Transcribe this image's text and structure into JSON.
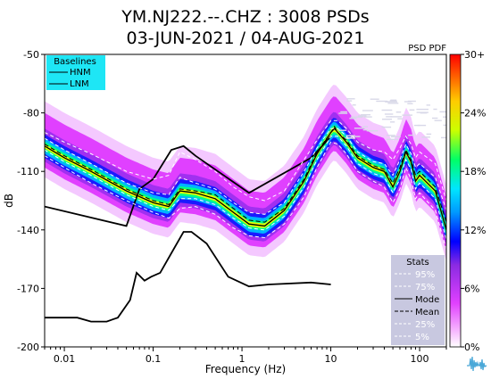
{
  "header": {
    "title_line1": "YM.NJ222.--.CHZ : 3008 PSDs",
    "title_line2": "03-JUN-2021 / 04-AUG-2021",
    "pdf_label": "PSD PDF"
  },
  "colors": {
    "baseline_box": "#1ee6f5",
    "stats_box": "#c8c8e0",
    "pdf_outer": "#e040ff",
    "pdf_inner": "#ffffff",
    "mode_line": "#000000"
  },
  "icons": {
    "logo": "seismogram-logo-icon"
  },
  "chart_data": {
    "type": "heatmap",
    "title": "YM.NJ222.--.CHZ : 3008 PSDs",
    "subtitle": "03-JUN-2021 / 04-AUG-2021",
    "xlabel": "Frequency (Hz)",
    "ylabel": "dB",
    "x_scale": "log",
    "xlim": [
      0.006,
      200
    ],
    "ylim": [
      -200,
      -50
    ],
    "x_ticks": [
      {
        "value": 0.01,
        "label": "0.01"
      },
      {
        "value": 0.1,
        "label": "0.1"
      },
      {
        "value": 1,
        "label": "1"
      },
      {
        "value": 10,
        "label": "10"
      },
      {
        "value": 100,
        "label": "100"
      }
    ],
    "y_ticks": [
      {
        "value": -50,
        "label": "-50"
      },
      {
        "value": -80,
        "label": "-80"
      },
      {
        "value": -110,
        "label": "-110"
      },
      {
        "value": -140,
        "label": "-140"
      },
      {
        "value": -170,
        "label": "-170"
      },
      {
        "value": -200,
        "label": "-200"
      }
    ],
    "colorbar": {
      "label": "PSD PDF",
      "ticks": [
        "0%",
        "6%",
        "12%",
        "18%",
        "24%",
        "30+"
      ],
      "range": [
        0,
        30
      ],
      "colors": [
        "#ffffff",
        "#e040ff",
        "#8a2be2",
        "#0000ff",
        "#00ccff",
        "#00ff66",
        "#ccff00",
        "#ffcc00",
        "#ff6600",
        "#ff0000"
      ]
    },
    "baselines": {
      "title": "Baselines",
      "entries": [
        "HNM",
        "LNM"
      ],
      "HNM": {
        "freq": [
          0.006,
          0.05,
          0.07,
          0.1,
          0.16,
          0.22,
          0.3,
          1.2,
          6,
          8,
          10
        ],
        "db": [
          -128,
          -138,
          -119,
          -114,
          -99,
          -97,
          -102,
          -121,
          -103,
          -97,
          -92
        ]
      },
      "LNM": {
        "freq": [
          0.006,
          0.014,
          0.02,
          0.03,
          0.04,
          0.055,
          0.065,
          0.08,
          0.095,
          0.12,
          0.16,
          0.22,
          0.27,
          0.4,
          0.7,
          1.2,
          2,
          6,
          10
        ],
        "db": [
          -185,
          -185,
          -187,
          -187,
          -185,
          -176,
          -162,
          -166,
          -164,
          -162,
          -152,
          -141,
          -141,
          -147,
          -164,
          -169,
          -168,
          -167,
          -168
        ]
      }
    },
    "stats": {
      "title": "Stats",
      "entries": [
        "95%",
        "75%",
        "Mode",
        "Mean",
        "25%",
        "5%"
      ]
    },
    "series": [
      {
        "name": "Mode",
        "freq": [
          0.006,
          0.01,
          0.02,
          0.05,
          0.1,
          0.15,
          0.2,
          0.3,
          0.5,
          0.8,
          1.2,
          1.8,
          3,
          5,
          7,
          10,
          11,
          12,
          15,
          20,
          30,
          40,
          50,
          60,
          70,
          80,
          90,
          100,
          150,
          200
        ],
        "db": [
          -97,
          -103,
          -110,
          -120,
          -126,
          -128,
          -120,
          -121,
          -124,
          -131,
          -137,
          -138,
          -130,
          -115,
          -101,
          -90,
          -88,
          -90,
          -95,
          -103,
          -108,
          -110,
          -118,
          -110,
          -100,
          -105,
          -115,
          -112,
          -120,
          -140
        ]
      },
      {
        "name": "Mean",
        "freq": [
          0.006,
          0.01,
          0.02,
          0.05,
          0.1,
          0.15,
          0.2,
          0.3,
          0.5,
          0.8,
          1.2,
          1.8,
          3,
          5,
          7,
          10,
          11,
          12,
          15,
          20,
          30,
          40,
          50,
          60,
          70,
          80,
          90,
          100,
          150,
          200
        ],
        "db": [
          -96,
          -102,
          -109,
          -119,
          -125,
          -127,
          -119,
          -120,
          -122,
          -129,
          -135,
          -136,
          -129,
          -114,
          -100,
          -90,
          -87,
          -90,
          -94,
          -102,
          -107,
          -109,
          -116,
          -108,
          -99,
          -104,
          -112,
          -110,
          -118,
          -136
        ]
      },
      {
        "name": "95%",
        "freq": [
          0.006,
          0.01,
          0.02,
          0.05,
          0.1,
          0.15,
          0.2,
          0.3,
          0.5,
          0.8,
          1.2,
          1.8,
          3,
          5,
          7,
          10,
          12,
          15,
          20,
          30,
          40,
          50,
          60,
          70,
          80,
          90,
          100,
          150,
          200
        ],
        "db": [
          -90,
          -95,
          -101,
          -110,
          -114,
          -112,
          -100,
          -104,
          -110,
          -118,
          -123,
          -125,
          -120,
          -104,
          -94,
          -84,
          -84,
          -88,
          -95,
          -99,
          -100,
          -104,
          -98,
          -92,
          -96,
          -103,
          -100,
          -106,
          -125
        ]
      },
      {
        "name": "75%",
        "freq": [
          0.006,
          0.01,
          0.02,
          0.05,
          0.1,
          0.15,
          0.2,
          0.3,
          0.5,
          0.8,
          1.2,
          1.8,
          3,
          5,
          7,
          10,
          12,
          15,
          20,
          30,
          40,
          50,
          60,
          70,
          80,
          90,
          100,
          150,
          200
        ],
        "db": [
          -93,
          -99,
          -106,
          -116,
          -121,
          -122,
          -113,
          -116,
          -119,
          -126,
          -131,
          -132,
          -126,
          -110,
          -98,
          -88,
          -88,
          -92,
          -100,
          -105,
          -106,
          -112,
          -104,
          -96,
          -101,
          -108,
          -106,
          -113,
          -130
        ]
      },
      {
        "name": "25%",
        "freq": [
          0.006,
          0.01,
          0.02,
          0.05,
          0.1,
          0.15,
          0.2,
          0.3,
          0.5,
          0.8,
          1.2,
          1.8,
          3,
          5,
          7,
          10,
          12,
          15,
          20,
          30,
          40,
          50,
          60,
          70,
          80,
          90,
          100,
          150,
          200
        ],
        "db": [
          -99,
          -105,
          -112,
          -122,
          -128,
          -130,
          -124,
          -124,
          -127,
          -134,
          -139,
          -140,
          -133,
          -118,
          -104,
          -92,
          -92,
          -97,
          -106,
          -111,
          -113,
          -121,
          -114,
          -104,
          -109,
          -119,
          -116,
          -124,
          -145
        ]
      },
      {
        "name": "5%",
        "freq": [
          0.006,
          0.01,
          0.02,
          0.05,
          0.1,
          0.15,
          0.2,
          0.3,
          0.5,
          0.8,
          1.2,
          1.8,
          3,
          5,
          7,
          10,
          12,
          15,
          20,
          30,
          40,
          50,
          60,
          70,
          80,
          90,
          100,
          150,
          200
        ],
        "db": [
          -102,
          -108,
          -116,
          -125,
          -131,
          -134,
          -129,
          -128,
          -132,
          -139,
          -143,
          -144,
          -137,
          -123,
          -108,
          -95,
          -96,
          -101,
          -110,
          -115,
          -118,
          -126,
          -119,
          -108,
          -114,
          -124,
          -121,
          -130,
          -150
        ]
      }
    ]
  }
}
